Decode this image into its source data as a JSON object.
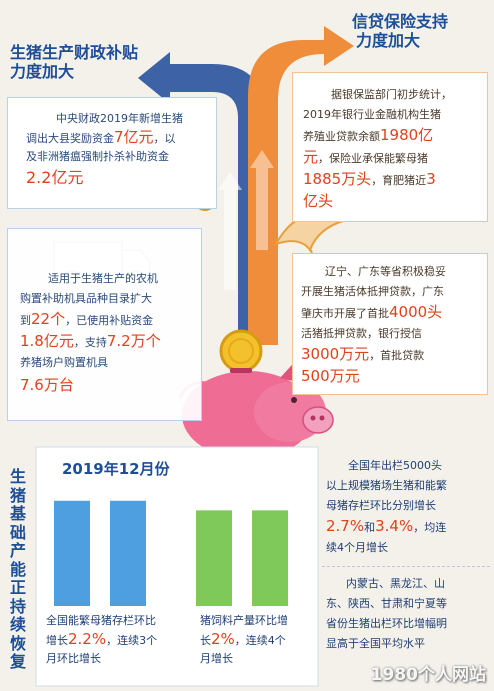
{
  "headings": {
    "left": [
      "生猪生产财政补贴",
      "力度加大"
    ],
    "right": [
      "信贷保险支持",
      "力度加大"
    ],
    "vertical": "生猪基础产能正持续恢复"
  },
  "box_subsidy": {
    "l1": "中央财政2019年新增生猪",
    "l2a": "调出大县奖励资金",
    "l2b": "7亿元",
    "l2c": "，以",
    "l3": "及非洲猪瘟强制扑杀补助资金",
    "l4": "2.2亿元"
  },
  "box_machinery": {
    "l1": "适用于生猪生产的农机",
    "l2": "购置补助机具品种目录扩大",
    "l3a": "到",
    "l3b": "22个",
    "l3c": "，已使用补贴资金",
    "l4a": "1.8亿元",
    "l4b": "，支持",
    "l4c": "7.2万个",
    "l5": "养猪场户购置机具",
    "l6": "7.6万台"
  },
  "box_credit": {
    "l1": "据银保监部门初步统计，",
    "l2": "2019年银行业金融机构生猪",
    "l3a": "养殖业贷款余额",
    "l3b": "1980亿",
    "l4a": "元",
    "l4b": "，保险业承保能繁母猪",
    "l5a": "1885万头",
    "l5b": "，育肥猪近",
    "l5c": "3",
    "l6": "亿头"
  },
  "box_mortgage": {
    "l1": "辽宁、广东等省积极稳妥",
    "l2": "开展生猪活体抵押贷款，广东",
    "l3a": "肇庆市开展了首批",
    "l3b": "4000头",
    "l4": "活猪抵押贷款，银行授信",
    "l5a": "3000万元",
    "l5b": "，首批贷款",
    "l6": "500万元"
  },
  "chart_data": {
    "type": "bar",
    "title": "2019年12月份",
    "series": [
      {
        "name": "全国能繁母猪存栏环比",
        "values": [
          2.2,
          2.2
        ],
        "unit": "%"
      },
      {
        "name": "猪饲料产量环比增长",
        "values": [
          2.0,
          2.0
        ],
        "unit": "%"
      }
    ]
  },
  "chart_captions": {
    "sow": {
      "l1": "全国能繁母猪存栏环比",
      "l2a": "增长",
      "l2b": "2.2%",
      "l2c": "，连续3个",
      "l3": "月环比增长"
    },
    "feed": {
      "l1": "猪饲料产量环比增",
      "l2a": "长",
      "l2b": "2%",
      "l2c": "，连续4个",
      "l3": "月增长"
    }
  },
  "box_herd": {
    "l1": "全国年出栏5000头",
    "l2": "以上规模猪场生猪和能繁",
    "l3": "母猪存栏环比分别增长",
    "l4a": "2.7%",
    "l4b": "和",
    "l4c": "3.4%",
    "l4d": "，均连",
    "l5": "续4个月增长"
  },
  "box_provinces": {
    "l1": "内蒙古、黑龙江、山",
    "l2": "东、陕西、甘肃和宁夏等",
    "l3": "省份生猪出栏环比增幅明",
    "l4": "显高于全国平均水平"
  },
  "watermark": "1980个人网站",
  "colors": {
    "blue_arrow": "#3d63a6",
    "orange_arrow": "#ef8d3a",
    "pig": "#ef6c95",
    "coin": "#f3c12b",
    "bar_blue": "#4e9fe0",
    "bar_green": "#7ec95a"
  }
}
